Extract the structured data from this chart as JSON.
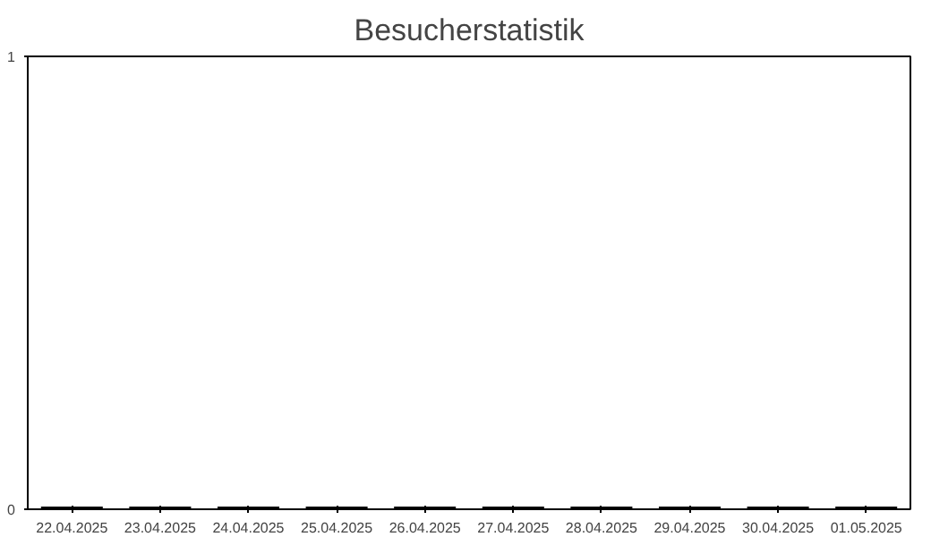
{
  "chart_data": {
    "type": "bar",
    "title": "Besucherstatistik",
    "categories": [
      "22.04.2025",
      "23.04.2025",
      "24.04.2025",
      "25.04.2025",
      "26.04.2025",
      "27.04.2025",
      "28.04.2025",
      "29.04.2025",
      "30.04.2025",
      "01.05.2025"
    ],
    "values": [
      0,
      0,
      0,
      0,
      0,
      0,
      0,
      0,
      0,
      0
    ],
    "color": "#000000",
    "ylim": [
      0,
      1
    ],
    "yticks": [
      0,
      1
    ],
    "grid": false
  }
}
